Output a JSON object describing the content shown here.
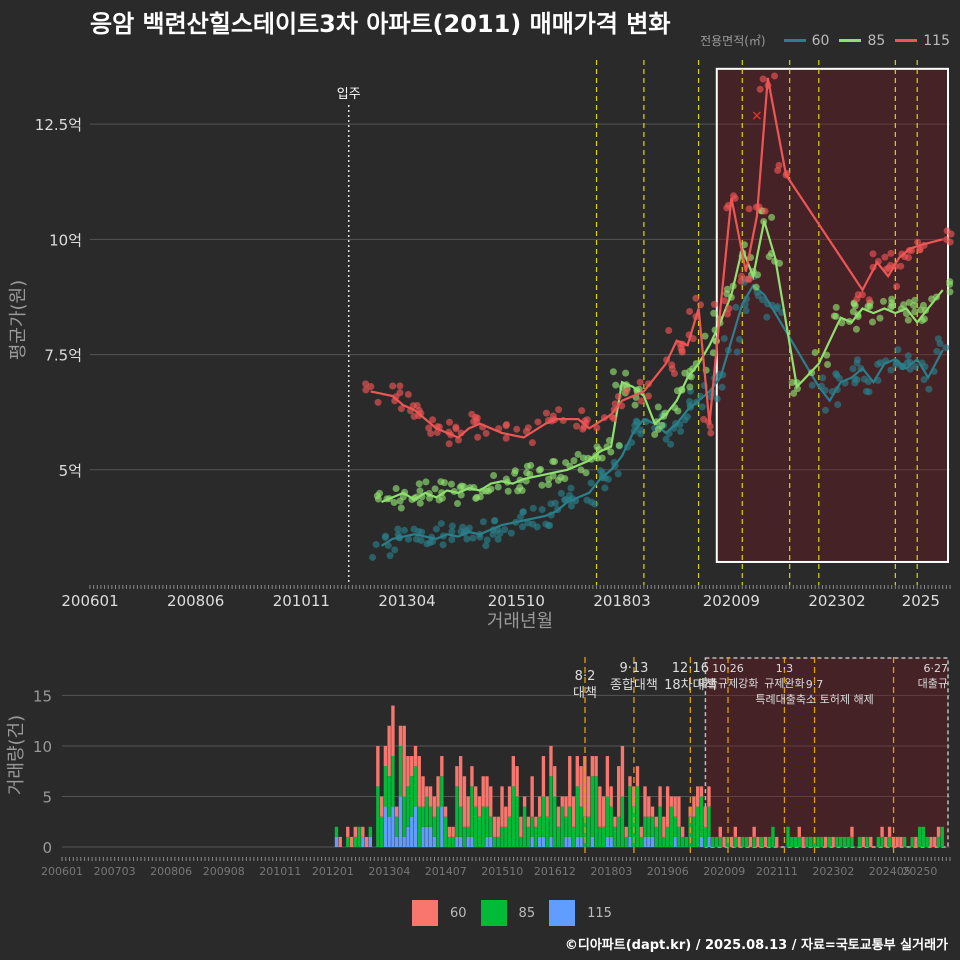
{
  "title": "응암 백련산힐스테이트3차 아파트(2011) 매매가격 변화",
  "legend_top_title": "전용면적(㎡)",
  "legend_bottom_title": "",
  "credit": "©디아파트(dapt.kr) / 2025.08.13 / 자료=국토교통부 실거래가",
  "colors": {
    "background": "#2a2a2b",
    "s60_line": "#2a7f8a",
    "s85_line": "#90e070",
    "s115_line": "#f05555",
    "s60_bar": "#f8766d",
    "s85_bar": "#00ba38",
    "s115_bar": "#619cff",
    "policy_line": "#d9d900",
    "highlight_box": "#ffffff"
  },
  "chart_data": [
    {
      "type": "line",
      "ylabel": "평균가(원)",
      "xlabel": "거래년월",
      "x_ticks": [
        "200601",
        "200806",
        "201011",
        "201304",
        "201510",
        "201803",
        "202009",
        "202302",
        "2025"
      ],
      "y_ticks": [
        {
          "value": 5,
          "label": "5억"
        },
        {
          "value": 7.5,
          "label": "7.5억"
        },
        {
          "value": 10,
          "label": "10억"
        },
        {
          "value": 12.5,
          "label": "12.5억"
        }
      ],
      "xlim": [
        "2006-01",
        "2025-09"
      ],
      "ylim": [
        2.5,
        14
      ],
      "move_in": {
        "date": "2011-12",
        "label": "입주"
      },
      "policy_dates": [
        "2017-08",
        "2018-09",
        "2019-12",
        "2020-12",
        "2022-01",
        "2022-09",
        "2024-06",
        "2024-12"
      ],
      "highlight": {
        "from": "2020-05",
        "to": "2025-09",
        "ymin": 3.0,
        "ymax": 13.7
      },
      "marker": {
        "date": "2021-04",
        "value": 12.7,
        "label": "×"
      },
      "series": [
        {
          "name": "60",
          "points": [
            [
              "2012-09",
              3.35
            ],
            [
              "2012-12",
              3.5
            ],
            [
              "2013-03",
              3.55
            ],
            [
              "2013-06",
              3.6
            ],
            [
              "2013-09",
              3.55
            ],
            [
              "2013-12",
              3.5
            ],
            [
              "2014-03",
              3.6
            ],
            [
              "2014-06",
              3.55
            ],
            [
              "2014-09",
              3.65
            ],
            [
              "2014-12",
              3.6
            ],
            [
              "2015-03",
              3.7
            ],
            [
              "2015-06",
              3.8
            ],
            [
              "2015-09",
              3.85
            ],
            [
              "2015-12",
              3.9
            ],
            [
              "2016-03",
              3.95
            ],
            [
              "2016-06",
              4.0
            ],
            [
              "2016-09",
              4.1
            ],
            [
              "2016-12",
              4.3
            ],
            [
              "2017-03",
              4.4
            ],
            [
              "2017-06",
              4.5
            ],
            [
              "2017-09",
              4.8
            ],
            [
              "2017-12",
              5.0
            ],
            [
              "2018-03",
              5.3
            ],
            [
              "2018-06",
              5.8
            ],
            [
              "2018-09",
              6.1
            ],
            [
              "2018-12",
              6.0
            ],
            [
              "2019-03",
              5.8
            ],
            [
              "2019-06",
              6.0
            ],
            [
              "2019-09",
              6.3
            ],
            [
              "2019-12",
              6.5
            ],
            [
              "2020-03",
              6.7
            ],
            [
              "2020-06",
              7.0
            ],
            [
              "2020-09",
              7.8
            ],
            [
              "2020-12",
              8.6
            ],
            [
              "2021-03",
              9.0
            ],
            [
              "2021-06",
              8.8
            ],
            [
              "2021-09",
              8.4
            ],
            [
              "2022-09",
              6.8
            ],
            [
              "2022-12",
              6.5
            ],
            [
              "2023-03",
              6.9
            ],
            [
              "2023-06",
              7.0
            ],
            [
              "2023-09",
              7.2
            ],
            [
              "2023-12",
              6.9
            ],
            [
              "2024-03",
              7.3
            ],
            [
              "2024-06",
              7.4
            ],
            [
              "2024-09",
              7.2
            ],
            [
              "2024-12",
              7.4
            ],
            [
              "2025-03",
              7.0
            ],
            [
              "2025-07",
              7.6
            ]
          ]
        },
        {
          "name": "85",
          "points": [
            [
              "2012-09",
              4.3
            ],
            [
              "2012-12",
              4.4
            ],
            [
              "2013-03",
              4.5
            ],
            [
              "2013-06",
              4.35
            ],
            [
              "2013-09",
              4.5
            ],
            [
              "2013-12",
              4.4
            ],
            [
              "2014-03",
              4.55
            ],
            [
              "2014-06",
              4.5
            ],
            [
              "2014-09",
              4.6
            ],
            [
              "2014-12",
              4.55
            ],
            [
              "2015-03",
              4.7
            ],
            [
              "2015-06",
              4.75
            ],
            [
              "2015-09",
              4.7
            ],
            [
              "2015-12",
              4.8
            ],
            [
              "2016-03",
              4.85
            ],
            [
              "2016-06",
              4.9
            ],
            [
              "2016-09",
              4.95
            ],
            [
              "2016-12",
              5.0
            ],
            [
              "2017-03",
              5.1
            ],
            [
              "2017-06",
              5.2
            ],
            [
              "2017-09",
              5.4
            ],
            [
              "2017-12",
              5.5
            ],
            [
              "2018-03",
              6.9
            ],
            [
              "2018-06",
              6.8
            ],
            [
              "2018-09",
              6.6
            ],
            [
              "2018-12",
              6.0
            ],
            [
              "2019-03",
              6.2
            ],
            [
              "2019-06",
              6.5
            ],
            [
              "2019-09",
              7.0
            ],
            [
              "2019-12",
              7.3
            ],
            [
              "2020-03",
              7.7
            ],
            [
              "2020-06",
              8.2
            ],
            [
              "2020-09",
              8.8
            ],
            [
              "2020-12",
              9.8
            ],
            [
              "2021-03",
              9.2
            ],
            [
              "2021-06",
              10.4
            ],
            [
              "2021-09",
              9.6
            ],
            [
              "2022-03",
              6.8
            ],
            [
              "2022-09",
              7.3
            ],
            [
              "2023-03",
              8.3
            ],
            [
              "2023-06",
              8.2
            ],
            [
              "2023-09",
              8.5
            ],
            [
              "2023-12",
              8.4
            ],
            [
              "2024-03",
              8.5
            ],
            [
              "2024-06",
              8.4
            ],
            [
              "2024-09",
              8.5
            ],
            [
              "2024-12",
              8.2
            ],
            [
              "2025-03",
              8.5
            ],
            [
              "2025-07",
              8.9
            ]
          ]
        },
        {
          "name": "115",
          "points": [
            [
              "2012-06",
              6.7
            ],
            [
              "2012-12",
              6.6
            ],
            [
              "2013-03",
              6.4
            ],
            [
              "2013-06",
              6.3
            ],
            [
              "2013-09",
              6.1
            ],
            [
              "2013-12",
              5.9
            ],
            [
              "2014-03",
              5.8
            ],
            [
              "2014-06",
              5.7
            ],
            [
              "2014-09",
              5.9
            ],
            [
              "2014-12",
              6.0
            ],
            [
              "2015-06",
              5.8
            ],
            [
              "2015-12",
              5.7
            ],
            [
              "2016-06",
              6.0
            ],
            [
              "2016-09",
              6.1
            ],
            [
              "2017-03",
              6.1
            ],
            [
              "2017-06",
              5.9
            ],
            [
              "2017-12",
              6.2
            ],
            [
              "2018-03",
              6.5
            ],
            [
              "2018-09",
              6.7
            ],
            [
              "2019-03",
              7.3
            ],
            [
              "2019-06",
              7.8
            ],
            [
              "2019-09",
              7.7
            ],
            [
              "2019-12",
              8.5
            ],
            [
              "2020-03",
              6.0
            ],
            [
              "2020-06",
              8.5
            ],
            [
              "2020-09",
              10.9
            ],
            [
              "2021-01",
              9.3
            ],
            [
              "2021-04",
              10.5
            ],
            [
              "2021-07",
              13.5
            ],
            [
              "2021-12",
              11.4
            ],
            [
              "2023-09",
              8.9
            ],
            [
              "2024-01",
              9.5
            ],
            [
              "2024-04",
              9.2
            ],
            [
              "2024-07",
              9.6
            ],
            [
              "2024-10",
              9.8
            ],
            [
              "2025-02",
              9.9
            ],
            [
              "2025-07",
              10.0
            ]
          ]
        }
      ]
    },
    {
      "type": "bar",
      "ylabel": "거래량(건)",
      "x_ticks": [
        "200601",
        "200703",
        "200806",
        "200908",
        "201011",
        "201201",
        "201304",
        "201407",
        "201510",
        "201612",
        "201803",
        "201906",
        "202009",
        "202111",
        "202302",
        "202405",
        "20250"
      ],
      "y_ticks": [
        0,
        5,
        10,
        15
      ],
      "ylim": [
        0,
        19
      ],
      "policies": [
        {
          "date": "2017-08",
          "label": "8·2 대책"
        },
        {
          "date": "2018-09",
          "label": "9·13 종합대책"
        },
        {
          "date": "2019-12",
          "label": "12·16 18차대책"
        },
        {
          "date": "2020-10",
          "label": "10·26 대출규제강화"
        },
        {
          "date": "2022-01",
          "label": "1·3 규제완화"
        },
        {
          "date": "2022-09",
          "label": "9·7 특례대출축소 토허제 해제"
        },
        {
          "date": "2024-06",
          "label": "6·27 대출규"
        }
      ],
      "highlight": {
        "from": "2020-04",
        "to": "2025-09"
      },
      "series_names": [
        "60",
        "85",
        "115"
      ]
    }
  ]
}
